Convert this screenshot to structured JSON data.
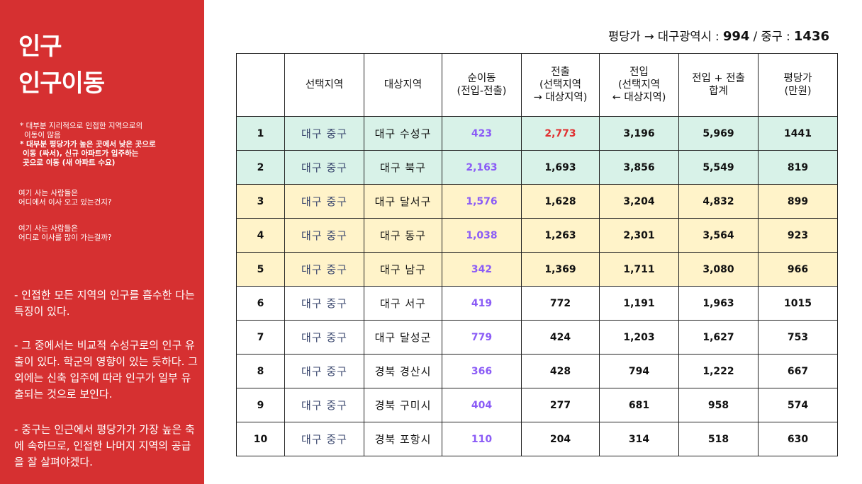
{
  "sidebar": {
    "title_line1": "인구",
    "title_line2": "인구이동",
    "note1_a": "* 대부분 지리적으로 인접한 지역으로의",
    "note1_b": "이동이 많음",
    "note2_a": "* 대부분 평당가가 높은 곳에서 낮은 곳으로",
    "note2_b": "이동 (싸서), 신규 아파트가 입주하는",
    "note2_c": "곳으로 이동 (새 아파트 수요)",
    "question1_a": "여기 사는 사람들은",
    "question1_b": "어디에서 이사 오고 있는건지?",
    "question2_a": "여기 사는 사람들은",
    "question2_b": "어디로 이사를 많이 가는걸까?",
    "para1": "- 인접한 모든 지역의 인구를 흡수한 다는 특징이 있다.",
    "para2": "- 그 중에서는 비교적 수성구로의 인구 유출이 있다. 학군의 영향이 있는 듯하다. 그 외에는 신축 입주에 따라 인구가 일부 유출되는 것으로 보인다.",
    "para3": "- 중구는 인근에서 평당가가 가장 높은 축에 속하므로, 인접한 나머지 지역의 공급을 잘 살펴야겠다."
  },
  "header": {
    "label_prefix": "평당가 → 대구광역시 : ",
    "daegu_value": "994",
    "sep": " / 중구 : ",
    "junggu_value": "1436"
  },
  "table": {
    "headers": {
      "no": "",
      "selected": "선택지역",
      "target": "대상지역",
      "net_a": "순이동",
      "net_b": "(전입-전출)",
      "out_a": "전출",
      "out_b": "(선택지역",
      "out_c": "→ 대상지역)",
      "in_a": "전입",
      "in_b": "(선택지역",
      "in_c": "← 대상지역)",
      "sum_a": "전입 + 전출",
      "sum_b": "합계",
      "price_a": "평당가",
      "price_b": "(만원)"
    },
    "rows": [
      {
        "no": "1",
        "selected": "대구 중구",
        "target": "대구 수성구",
        "net": "423",
        "out": "2,773",
        "in": "3,196",
        "sum": "5,969",
        "price": "1441"
      },
      {
        "no": "2",
        "selected": "대구 중구",
        "target": "대구 북구",
        "net": "2,163",
        "out": "1,693",
        "in": "3,856",
        "sum": "5,549",
        "price": "819"
      },
      {
        "no": "3",
        "selected": "대구 중구",
        "target": "대구 달서구",
        "net": "1,576",
        "out": "1,628",
        "in": "3,204",
        "sum": "4,832",
        "price": "899"
      },
      {
        "no": "4",
        "selected": "대구 중구",
        "target": "대구 동구",
        "net": "1,038",
        "out": "1,263",
        "in": "2,301",
        "sum": "3,564",
        "price": "923"
      },
      {
        "no": "5",
        "selected": "대구 중구",
        "target": "대구 남구",
        "net": "342",
        "out": "1,369",
        "in": "1,711",
        "sum": "3,080",
        "price": "966"
      },
      {
        "no": "6",
        "selected": "대구 중구",
        "target": "대구 서구",
        "net": "419",
        "out": "772",
        "in": "1,191",
        "sum": "1,963",
        "price": "1015"
      },
      {
        "no": "7",
        "selected": "대구 중구",
        "target": "대구 달성군",
        "net": "779",
        "out": "424",
        "in": "1,203",
        "sum": "1,627",
        "price": "753"
      },
      {
        "no": "8",
        "selected": "대구 중구",
        "target": "경북 경산시",
        "net": "366",
        "out": "428",
        "in": "794",
        "sum": "1,222",
        "price": "667"
      },
      {
        "no": "9",
        "selected": "대구 중구",
        "target": "경북 구미시",
        "net": "404",
        "out": "277",
        "in": "681",
        "sum": "958",
        "price": "574"
      },
      {
        "no": "10",
        "selected": "대구 중구",
        "target": "경북 포항시",
        "net": "110",
        "out": "204",
        "in": "314",
        "sum": "518",
        "price": "630"
      }
    ]
  },
  "colors": {
    "sidebar_bg": "#d63031",
    "row_green": "#d8f2e8",
    "row_yellow": "#fff3c9",
    "net_purple": "#8b5cf6",
    "highlight_red": "#e03030",
    "selected_text": "#3d4a70"
  }
}
